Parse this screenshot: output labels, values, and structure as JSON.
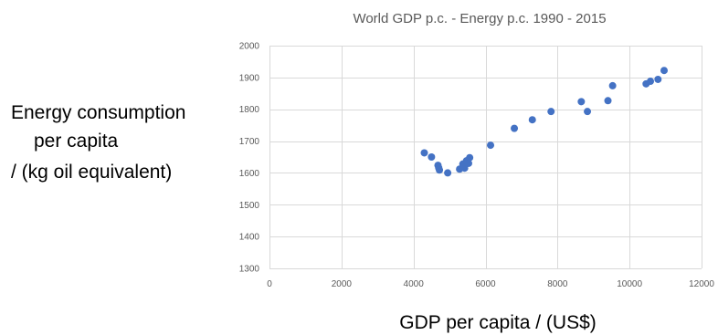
{
  "chart_data": {
    "type": "scatter",
    "title": "World GDP p.c. - Energy p.c. 1990 - 2015",
    "xlabel": "GDP per capita / (US$)",
    "ylabel_lines": [
      "Energy consumption",
      "per capita",
      "/ (kg oil equivalent)"
    ],
    "xlim": [
      0,
      12000
    ],
    "ylim": [
      1300,
      2000
    ],
    "xticks": [
      0,
      2000,
      4000,
      6000,
      8000,
      10000,
      12000
    ],
    "yticks": [
      1300,
      1400,
      1500,
      1600,
      1700,
      1800,
      1900,
      2000
    ],
    "grid": true,
    "marker_color": "#4472c4",
    "points": [
      {
        "x": 4300,
        "y": 1663
      },
      {
        "x": 4500,
        "y": 1650
      },
      {
        "x": 4680,
        "y": 1624
      },
      {
        "x": 4700,
        "y": 1616
      },
      {
        "x": 4720,
        "y": 1609
      },
      {
        "x": 4950,
        "y": 1600
      },
      {
        "x": 5280,
        "y": 1612
      },
      {
        "x": 5370,
        "y": 1628
      },
      {
        "x": 5420,
        "y": 1615
      },
      {
        "x": 5470,
        "y": 1638
      },
      {
        "x": 5530,
        "y": 1630
      },
      {
        "x": 5560,
        "y": 1648
      },
      {
        "x": 6140,
        "y": 1687
      },
      {
        "x": 6800,
        "y": 1740
      },
      {
        "x": 7300,
        "y": 1767
      },
      {
        "x": 7820,
        "y": 1793
      },
      {
        "x": 8660,
        "y": 1824
      },
      {
        "x": 8830,
        "y": 1793
      },
      {
        "x": 9400,
        "y": 1827
      },
      {
        "x": 9530,
        "y": 1874
      },
      {
        "x": 10460,
        "y": 1880
      },
      {
        "x": 10580,
        "y": 1888
      },
      {
        "x": 10790,
        "y": 1894
      },
      {
        "x": 10960,
        "y": 1922
      }
    ]
  }
}
